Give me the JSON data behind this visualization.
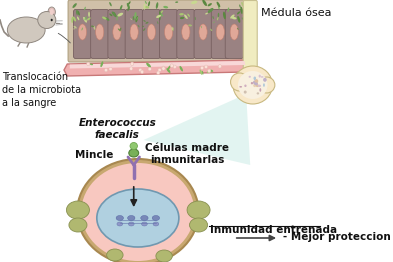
{
  "bg_color": "#ffffff",
  "labels": {
    "medula_osea": "Médula ósea",
    "translocacion": "Translocación\nde la microbiota\na la sangre",
    "enterococcus": "Enterococcus\nfaecalis",
    "mincle": "Mincle",
    "celulas_madre": "Células madre\ninmunitarlas",
    "inmunidad": "Inmunidad entrenada",
    "mejor_proteccion": "- Mejor proteccion"
  },
  "colors": {
    "wall_bg": "#c8b8b0",
    "villi_body": "#9a8080",
    "villi_oval": "#e0a898",
    "bacteria_colors": [
      "#7ab060",
      "#a8c870",
      "#60904a",
      "#c8d890",
      "#5a8840"
    ],
    "blood_vessel_fill": "#f0b0b0",
    "blood_vessel_edge": "#c87878",
    "blood_vessel_inner": "#f8d0d0",
    "bone_shaft_fill": "#f0ecc0",
    "bone_shaft_edge": "#c8c090",
    "bone_head_fill": "#f8e8c8",
    "bone_head_edge": "#c8b880",
    "bone_marrow_fill": "#f8f0e0",
    "triangle_fill": "#c0e8e0",
    "cell_fill": "#f8c8c0",
    "cell_edge": "#b88860",
    "nucleus_fill": "#b0d0e0",
    "nucleus_edge": "#7098b0",
    "organelle_fill": "#b0b870",
    "organelle_edge": "#889050",
    "dna_fill": "#8090c0",
    "receptor_color": "#9070b0",
    "bacteria_cap1": "#78b058",
    "bacteria_cap2": "#90c870",
    "arrow_color": "#222222",
    "mouse_body": "#d0c8be",
    "mouse_edge": "#908880"
  }
}
